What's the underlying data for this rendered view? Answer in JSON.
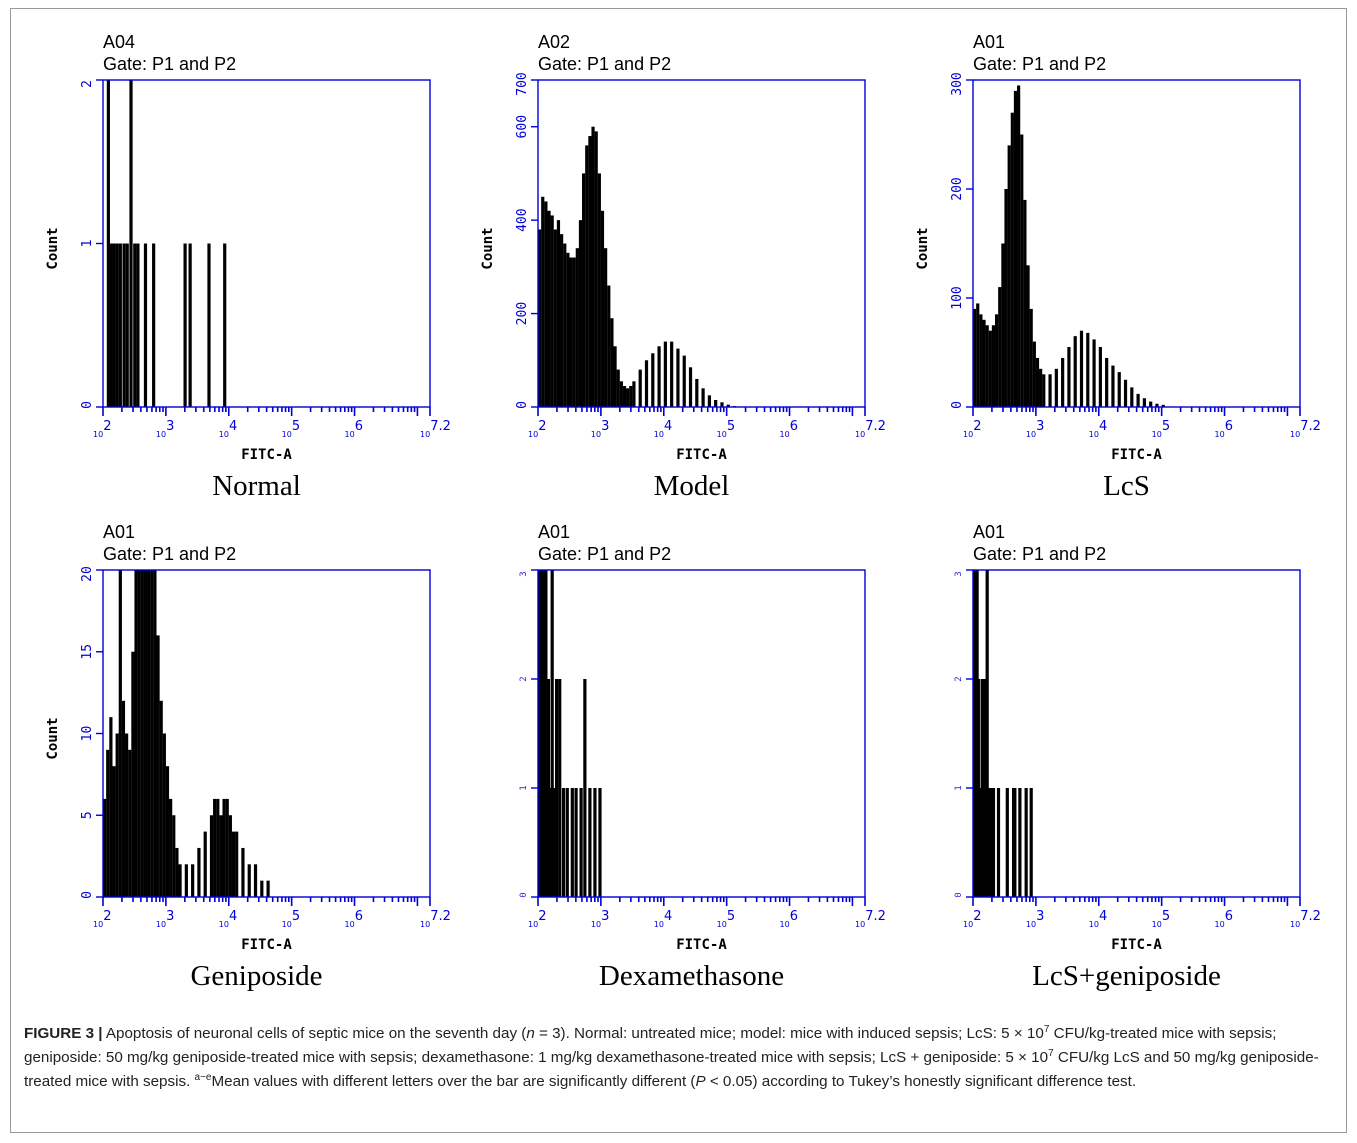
{
  "colors": {
    "axis": "#0000d8",
    "bars": "#000000",
    "text": "#000000",
    "frame": "#9a9a9a"
  },
  "chart_data": [
    {
      "type": "histogram",
      "well": "A04",
      "gate": "Gate: P1 and P2",
      "group_label": "Normal",
      "xlabel": "FITC-A",
      "ylabel": "Count",
      "x_scale": "log10",
      "xlim": [
        100,
        15848932
      ],
      "x_ticks": [
        "10^2",
        "10^3",
        "10^4",
        "10^5",
        "10^6",
        "10^7.2"
      ],
      "ylim": [
        0,
        2
      ],
      "y_ticks": [
        "0",
        "1",
        "2"
      ],
      "y_ticks_faint": false,
      "bars": [
        [
          2.06,
          2
        ],
        [
          2.1,
          1
        ],
        [
          2.15,
          1
        ],
        [
          2.2,
          1
        ],
        [
          2.25,
          1
        ],
        [
          2.31,
          1
        ],
        [
          2.36,
          1
        ],
        [
          2.42,
          2
        ],
        [
          2.48,
          1
        ],
        [
          2.53,
          1
        ],
        [
          2.65,
          1
        ],
        [
          2.78,
          1
        ],
        [
          3.28,
          1
        ],
        [
          3.36,
          1
        ],
        [
          3.66,
          1
        ],
        [
          3.91,
          1
        ]
      ]
    },
    {
      "type": "histogram",
      "well": "A02",
      "gate": "Gate: P1 and P2",
      "group_label": "Model",
      "xlabel": "FITC-A",
      "ylabel": "Count",
      "x_scale": "log10",
      "xlim": [
        100,
        15848932
      ],
      "x_ticks": [
        "10^2",
        "10^3",
        "10^4",
        "10^5",
        "10^6",
        "10^7.2"
      ],
      "ylim": [
        0,
        700
      ],
      "y_ticks": [
        "0",
        "200",
        "400",
        "600",
        "700"
      ],
      "y_ticks_faint": false,
      "bars": [
        [
          2.0,
          380
        ],
        [
          2.05,
          450
        ],
        [
          2.1,
          440
        ],
        [
          2.15,
          420
        ],
        [
          2.2,
          410
        ],
        [
          2.25,
          380
        ],
        [
          2.3,
          400
        ],
        [
          2.35,
          370
        ],
        [
          2.4,
          350
        ],
        [
          2.45,
          330
        ],
        [
          2.5,
          320
        ],
        [
          2.55,
          320
        ],
        [
          2.6,
          340
        ],
        [
          2.65,
          400
        ],
        [
          2.7,
          500
        ],
        [
          2.75,
          560
        ],
        [
          2.8,
          580
        ],
        [
          2.85,
          600
        ],
        [
          2.9,
          590
        ],
        [
          2.95,
          500
        ],
        [
          3.0,
          420
        ],
        [
          3.05,
          340
        ],
        [
          3.1,
          260
        ],
        [
          3.15,
          190
        ],
        [
          3.2,
          130
        ],
        [
          3.25,
          80
        ],
        [
          3.3,
          55
        ],
        [
          3.35,
          45
        ],
        [
          3.4,
          40
        ],
        [
          3.45,
          45
        ],
        [
          3.5,
          55
        ],
        [
          3.6,
          80
        ],
        [
          3.7,
          100
        ],
        [
          3.8,
          115
        ],
        [
          3.9,
          130
        ],
        [
          4.0,
          140
        ],
        [
          4.1,
          140
        ],
        [
          4.2,
          125
        ],
        [
          4.3,
          110
        ],
        [
          4.4,
          85
        ],
        [
          4.5,
          60
        ],
        [
          4.6,
          40
        ],
        [
          4.7,
          25
        ],
        [
          4.8,
          15
        ],
        [
          4.9,
          10
        ],
        [
          5.0,
          5
        ],
        [
          5.1,
          2
        ]
      ]
    },
    {
      "type": "histogram",
      "well": "A01",
      "gate": "Gate: P1 and P2",
      "group_label": "LcS",
      "xlabel": "FITC-A",
      "ylabel": "Count",
      "x_scale": "log10",
      "xlim": [
        100,
        15848932
      ],
      "x_ticks": [
        "10^2",
        "10^3",
        "10^4",
        "10^5",
        "10^6",
        "10^7.2"
      ],
      "ylim": [
        0,
        300
      ],
      "y_ticks": [
        "0",
        "100",
        "200",
        "300"
      ],
      "y_ticks_faint": false,
      "bars": [
        [
          2.0,
          90
        ],
        [
          2.05,
          95
        ],
        [
          2.1,
          85
        ],
        [
          2.15,
          80
        ],
        [
          2.2,
          75
        ],
        [
          2.25,
          70
        ],
        [
          2.3,
          75
        ],
        [
          2.35,
          85
        ],
        [
          2.4,
          110
        ],
        [
          2.45,
          150
        ],
        [
          2.5,
          200
        ],
        [
          2.55,
          240
        ],
        [
          2.6,
          270
        ],
        [
          2.65,
          290
        ],
        [
          2.7,
          295
        ],
        [
          2.75,
          250
        ],
        [
          2.8,
          190
        ],
        [
          2.85,
          130
        ],
        [
          2.9,
          90
        ],
        [
          2.95,
          60
        ],
        [
          3.0,
          45
        ],
        [
          3.05,
          35
        ],
        [
          3.1,
          30
        ],
        [
          3.2,
          30
        ],
        [
          3.3,
          35
        ],
        [
          3.4,
          45
        ],
        [
          3.5,
          55
        ],
        [
          3.6,
          65
        ],
        [
          3.7,
          70
        ],
        [
          3.8,
          68
        ],
        [
          3.9,
          62
        ],
        [
          4.0,
          55
        ],
        [
          4.1,
          45
        ],
        [
          4.2,
          38
        ],
        [
          4.3,
          32
        ],
        [
          4.4,
          25
        ],
        [
          4.5,
          18
        ],
        [
          4.6,
          12
        ],
        [
          4.7,
          8
        ],
        [
          4.8,
          5
        ],
        [
          4.9,
          3
        ],
        [
          5.0,
          2
        ]
      ]
    },
    {
      "type": "histogram",
      "well": "A01",
      "gate": "Gate: P1 and P2",
      "group_label": "Geniposide",
      "xlabel": "FITC-A",
      "ylabel": "Count",
      "x_scale": "log10",
      "xlim": [
        100,
        15848932
      ],
      "x_ticks": [
        "10^2",
        "10^3",
        "10^4",
        "10^5",
        "10^6",
        "10^7.2"
      ],
      "ylim": [
        0,
        20
      ],
      "y_ticks": [
        "0",
        "5",
        "10",
        "15",
        "20"
      ],
      "y_ticks_faint": false,
      "bars": [
        [
          2.0,
          6
        ],
        [
          2.05,
          9
        ],
        [
          2.1,
          11
        ],
        [
          2.15,
          8
        ],
        [
          2.2,
          10
        ],
        [
          2.25,
          20
        ],
        [
          2.3,
          12
        ],
        [
          2.35,
          10
        ],
        [
          2.4,
          9
        ],
        [
          2.45,
          15
        ],
        [
          2.5,
          20
        ],
        [
          2.55,
          20
        ],
        [
          2.6,
          20
        ],
        [
          2.65,
          20
        ],
        [
          2.7,
          20
        ],
        [
          2.75,
          20
        ],
        [
          2.8,
          20
        ],
        [
          2.85,
          16
        ],
        [
          2.9,
          12
        ],
        [
          2.95,
          10
        ],
        [
          3.0,
          8
        ],
        [
          3.05,
          6
        ],
        [
          3.1,
          5
        ],
        [
          3.15,
          3
        ],
        [
          3.2,
          2
        ],
        [
          3.3,
          2
        ],
        [
          3.4,
          2
        ],
        [
          3.5,
          3
        ],
        [
          3.6,
          4
        ],
        [
          3.7,
          5
        ],
        [
          3.75,
          6
        ],
        [
          3.8,
          6
        ],
        [
          3.85,
          5
        ],
        [
          3.9,
          6
        ],
        [
          3.95,
          6
        ],
        [
          4.0,
          5
        ],
        [
          4.05,
          4
        ],
        [
          4.1,
          4
        ],
        [
          4.2,
          3
        ],
        [
          4.3,
          2
        ],
        [
          4.4,
          2
        ],
        [
          4.5,
          1
        ],
        [
          4.6,
          1
        ]
      ]
    },
    {
      "type": "histogram",
      "well": "A01",
      "gate": "Gate: P1 and P2",
      "group_label": "Dexamethasone",
      "xlabel": "FITC-A",
      "ylabel": "",
      "x_scale": "log10",
      "xlim": [
        100,
        15848932
      ],
      "x_ticks": [
        "10^2",
        "10^3",
        "10^4",
        "10^5",
        "10^6",
        "10^7.2"
      ],
      "ylim": [
        0,
        3
      ],
      "y_ticks": [
        "0",
        "1",
        "2",
        "3"
      ],
      "y_ticks_faint": true,
      "bars": [
        [
          2.0,
          3
        ],
        [
          2.02,
          3
        ],
        [
          2.04,
          3
        ],
        [
          2.06,
          3
        ],
        [
          2.08,
          2
        ],
        [
          2.1,
          3
        ],
        [
          2.12,
          2
        ],
        [
          2.14,
          2
        ],
        [
          2.17,
          1
        ],
        [
          2.2,
          3
        ],
        [
          2.24,
          1
        ],
        [
          2.27,
          2
        ],
        [
          2.32,
          2
        ],
        [
          2.38,
          1
        ],
        [
          2.44,
          1
        ],
        [
          2.52,
          1
        ],
        [
          2.58,
          1
        ],
        [
          2.66,
          1
        ],
        [
          2.72,
          2
        ],
        [
          2.8,
          1
        ],
        [
          2.88,
          1
        ],
        [
          2.96,
          1
        ]
      ]
    },
    {
      "type": "histogram",
      "well": "A01",
      "gate": "Gate: P1 and P2",
      "group_label": "LcS+geniposide",
      "xlabel": "FITC-A",
      "ylabel": "",
      "x_scale": "log10",
      "xlim": [
        100,
        15848932
      ],
      "x_ticks": [
        "10^2",
        "10^3",
        "10^4",
        "10^5",
        "10^6",
        "10^7.2"
      ],
      "ylim": [
        0,
        3
      ],
      "y_ticks": [
        "0",
        "1",
        "2",
        "3"
      ],
      "y_ticks_faint": true,
      "bars": [
        [
          2.0,
          3
        ],
        [
          2.02,
          2
        ],
        [
          2.04,
          3
        ],
        [
          2.06,
          2
        ],
        [
          2.08,
          1
        ],
        [
          2.1,
          1
        ],
        [
          2.12,
          2
        ],
        [
          2.14,
          1
        ],
        [
          2.16,
          2
        ],
        [
          2.18,
          1
        ],
        [
          2.2,
          3
        ],
        [
          2.23,
          1
        ],
        [
          2.26,
          1
        ],
        [
          2.3,
          1
        ],
        [
          2.38,
          1
        ],
        [
          2.52,
          1
        ],
        [
          2.62,
          1
        ],
        [
          2.64,
          1
        ],
        [
          2.72,
          1
        ],
        [
          2.82,
          1
        ],
        [
          2.9,
          1
        ]
      ]
    }
  ],
  "caption": {
    "label": "FIGURE 3 |",
    "p1": " Apoptosis of neuronal cells of septic mice on the seventh day (",
    "n_italic": "n",
    "p2": " = 3). Normal: untreated mice; model: mice with induced sepsis; LcS: 5 × 10",
    "sup1": "7",
    "p3": " CFU/kg-treated mice with sepsis; geniposide: 50 mg/kg geniposide-treated mice with sepsis; dexamethasone: 1 mg/kg dexamethasone-treated mice with sepsis; LcS + geniposide: 5 × 10",
    "sup2": "7",
    "p4": " CFU/kg LcS and 50 mg/kg geniposide-treated mice with sepsis. ",
    "sup3": "a−e",
    "p5": "Mean values with different letters over the bar are significantly different (",
    "p_italic": "P",
    "p6": " < 0.05) according to Tukey’s honestly significant difference test."
  }
}
